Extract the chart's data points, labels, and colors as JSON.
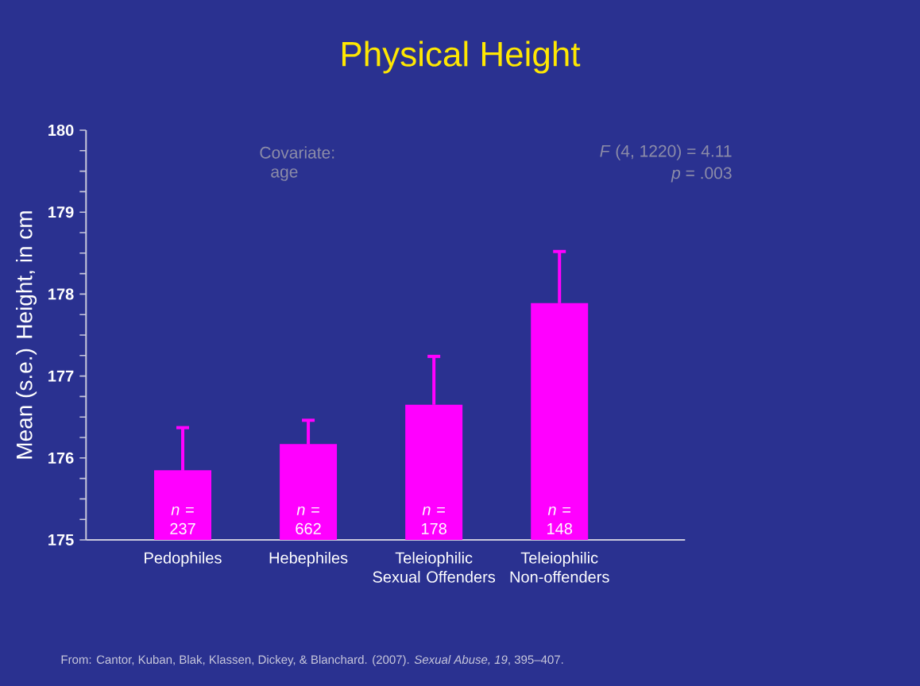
{
  "chart_data": {
    "type": "bar",
    "title": "Physical Height",
    "ylabel": "Mean (s.e.) Height, in cm",
    "categories": [
      "Pedophiles",
      "Hebephiles",
      "Teleiophilic Sexual Offenders",
      "Teleiophilic Non-offenders"
    ],
    "values": [
      175.85,
      176.17,
      176.65,
      177.89
    ],
    "errors": [
      0.52,
      0.29,
      0.59,
      0.63
    ],
    "color": "#ff00ff",
    "ylim": [
      175,
      180
    ],
    "yticks": [
      175,
      {
        "value": 175.25,
        "label": null
      },
      {
        "value": 175.5,
        "label": null
      },
      {
        "value": 175.75,
        "label": null
      },
      176,
      {
        "value": 176.25,
        "label": null
      },
      {
        "value": 176.5,
        "label": null
      },
      {
        "value": 176.75,
        "label": null
      },
      177,
      {
        "value": 177.25,
        "label": null
      },
      {
        "value": 177.5,
        "label": null
      },
      {
        "value": 177.75,
        "label": null
      },
      178,
      {
        "value": 178.25,
        "label": null
      },
      {
        "value": 178.5,
        "label": null
      },
      {
        "value": 178.75,
        "label": null
      },
      179,
      {
        "value": 179.25,
        "label": null
      },
      {
        "value": 179.5,
        "label": null
      },
      {
        "value": 179.75,
        "label": null
      },
      180
    ],
    "grid": false,
    "annotations": [
      "Covariate:",
      "age",
      "*F* (4, 1220) = 4.11",
      "*p* = .003",
      "*n* = 237",
      "*n* = 662",
      "*n* = 178",
      "*n* = 148",
      "From: Cantor, Kuban, Blak, Klassen, Dickey, & Blanchard. (2007). *Sexual Abuse, 19*, 395–407."
    ]
  }
}
